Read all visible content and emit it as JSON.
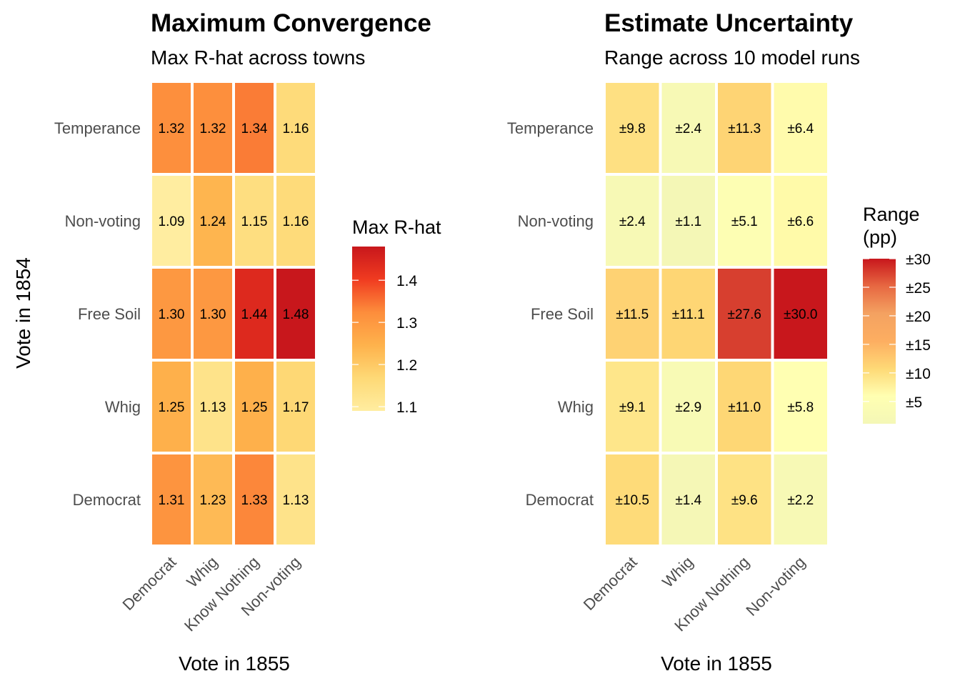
{
  "chart_data": [
    {
      "type": "heatmap",
      "title": "Maximum Convergence",
      "subtitle": "Max R-hat across towns",
      "xlabel": "Vote in 1855",
      "ylabel": "Vote in 1854",
      "x_categories": [
        "Democrat",
        "Whig",
        "Know Nothing",
        "Non-voting"
      ],
      "y_categories": [
        "Temperance",
        "Non-voting",
        "Free Soil",
        "Whig",
        "Democrat"
      ],
      "values": [
        [
          1.32,
          1.32,
          1.34,
          1.16
        ],
        [
          1.09,
          1.24,
          1.15,
          1.16
        ],
        [
          1.3,
          1.3,
          1.44,
          1.48
        ],
        [
          1.25,
          1.13,
          1.25,
          1.17
        ],
        [
          1.31,
          1.23,
          1.33,
          1.13
        ]
      ],
      "cell_labels": [
        [
          "1.32",
          "1.32",
          "1.34",
          "1.16"
        ],
        [
          "1.09",
          "1.24",
          "1.15",
          "1.16"
        ],
        [
          "1.30",
          "1.30",
          "1.44",
          "1.48"
        ],
        [
          "1.25",
          "1.13",
          "1.25",
          "1.17"
        ],
        [
          "1.31",
          "1.23",
          "1.33",
          "1.13"
        ]
      ],
      "legend": {
        "title": "Max R-hat",
        "range": [
          1.09,
          1.48
        ],
        "ticks": [
          1.1,
          1.2,
          1.3,
          1.4
        ],
        "tick_labels": [
          "1.1",
          "1.2",
          "1.3",
          "1.4"
        ],
        "colors": [
          "#ffeda0",
          "#fed976",
          "#feb24c",
          "#fd8d3c",
          "#f03b20",
          "#c8171c"
        ],
        "placement": "right"
      }
    },
    {
      "type": "heatmap",
      "title": "Estimate Uncertainty",
      "subtitle": "Range across 10 model runs",
      "xlabel": "Vote in 1855",
      "ylabel": "",
      "x_categories": [
        "Democrat",
        "Whig",
        "Know Nothing",
        "Non-voting"
      ],
      "y_categories": [
        "Temperance",
        "Non-voting",
        "Free Soil",
        "Whig",
        "Democrat"
      ],
      "values": [
        [
          9.8,
          2.4,
          11.3,
          6.4
        ],
        [
          2.4,
          1.1,
          5.1,
          6.6
        ],
        [
          11.5,
          11.1,
          27.6,
          30.0
        ],
        [
          9.1,
          2.9,
          11.0,
          5.8
        ],
        [
          10.5,
          1.4,
          9.6,
          2.2
        ]
      ],
      "cell_labels": [
        [
          "±9.8",
          "±2.4",
          "±11.3",
          "±6.4"
        ],
        [
          "±2.4",
          "±1.1",
          "±5.1",
          "±6.6"
        ],
        [
          "±11.5",
          "±11.1",
          "±27.6",
          "±30.0"
        ],
        [
          "±9.1",
          "±2.9",
          "±11.0",
          "±5.8"
        ],
        [
          "±10.5",
          "±1.4",
          "±9.6",
          "±2.2"
        ]
      ],
      "legend": {
        "title_lines": [
          "Range",
          "(pp)"
        ],
        "range": [
          1.1,
          30.0
        ],
        "ticks": [
          5,
          10,
          15,
          20,
          25,
          30
        ],
        "tick_labels": [
          "±5",
          "±10",
          "±15",
          "±20",
          "±25",
          "±30"
        ],
        "colors": [
          "#f4f7b6",
          "#ffffb2",
          "#fed976",
          "#fdae61",
          "#f4a261",
          "#e76842",
          "#c8171c"
        ],
        "placement": "right"
      }
    }
  ]
}
